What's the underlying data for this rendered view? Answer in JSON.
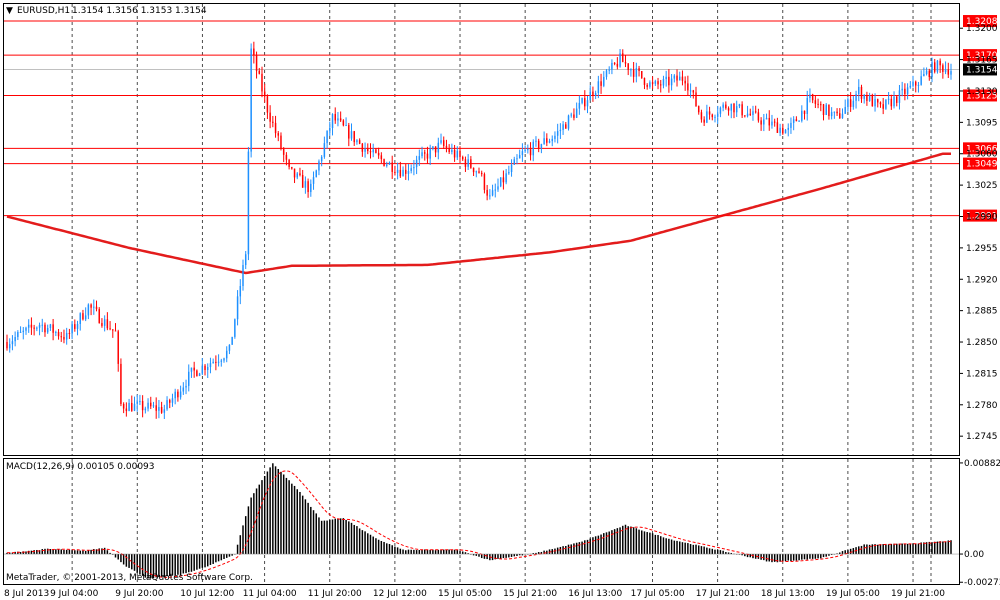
{
  "header": {
    "symbol": "EURUSD,H1",
    "ohlc": "1.3154 1.3156 1.3153 1.3154"
  },
  "copyright": "MetaTrader, © 2001-2013, MetaQuotes Software Corp.",
  "colors": {
    "background": "#ffffff",
    "bull_candle": "#1e90ff",
    "bear_candle": "#ff0000",
    "grid": "#000000",
    "level_line": "#ff0000",
    "moving_average": "#e31c1c",
    "macd_histogram": "#000000",
    "macd_signal": "#ff0000",
    "bid_line": "#c0c0c0"
  },
  "chart_data": [
    {
      "type": "candlestick",
      "symbol": "EURUSD",
      "timeframe": "H1",
      "ylim": [
        1.2724,
        1.3227
      ],
      "y_ticks": [
        "1.3200",
        "1.3165",
        "1.3130",
        "1.3095",
        "1.3060",
        "1.3025",
        "1.2990",
        "1.2955",
        "1.2920",
        "1.2885",
        "1.2850",
        "1.2815",
        "1.2780",
        "1.2745"
      ],
      "x_tick_labels": [
        "8 Jul 2013",
        "9 Jul 04:00",
        "9 Jul 20:00",
        "10 Jul 12:00",
        "11 Jul 04:00",
        "11 Jul 20:00",
        "12 Jul 12:00",
        "15 Jul 05:00",
        "15 Jul 21:00",
        "16 Jul 13:00",
        "17 Jul 05:00",
        "17 Jul 21:00",
        "18 Jul 13:00",
        "19 Jul 05:00",
        "19 Jul 21:00"
      ],
      "horizontal_levels": [
        1.3208,
        1.317,
        1.3125,
        1.3066,
        1.3049,
        1.2991
      ],
      "current_price": 1.3154,
      "close_path_keypoints": [
        {
          "t": 0,
          "close": 1.285
        },
        {
          "t": 12,
          "close": 1.287
        },
        {
          "t": 22,
          "close": 1.2855
        },
        {
          "t": 30,
          "close": 1.289
        },
        {
          "t": 40,
          "close": 1.286
        },
        {
          "t": 42,
          "close": 1.278
        },
        {
          "t": 58,
          "close": 1.2775
        },
        {
          "t": 68,
          "close": 1.2815
        },
        {
          "t": 82,
          "close": 1.284
        },
        {
          "t": 88,
          "close": 1.295
        },
        {
          "t": 90,
          "close": 1.3175
        },
        {
          "t": 96,
          "close": 1.311
        },
        {
          "t": 104,
          "close": 1.304
        },
        {
          "t": 112,
          "close": 1.302
        },
        {
          "t": 120,
          "close": 1.31
        },
        {
          "t": 134,
          "close": 1.306
        },
        {
          "t": 146,
          "close": 1.304
        },
        {
          "t": 160,
          "close": 1.307
        },
        {
          "t": 174,
          "close": 1.304
        },
        {
          "t": 178,
          "close": 1.301
        },
        {
          "t": 190,
          "close": 1.306
        },
        {
          "t": 202,
          "close": 1.308
        },
        {
          "t": 216,
          "close": 1.313
        },
        {
          "t": 226,
          "close": 1.3165
        },
        {
          "t": 238,
          "close": 1.3135
        },
        {
          "t": 250,
          "close": 1.3145
        },
        {
          "t": 256,
          "close": 1.31
        },
        {
          "t": 266,
          "close": 1.3115
        },
        {
          "t": 276,
          "close": 1.31
        },
        {
          "t": 288,
          "close": 1.3085
        },
        {
          "t": 296,
          "close": 1.312
        },
        {
          "t": 306,
          "close": 1.31
        },
        {
          "t": 314,
          "close": 1.313
        },
        {
          "t": 322,
          "close": 1.311
        },
        {
          "t": 334,
          "close": 1.3135
        },
        {
          "t": 342,
          "close": 1.3158
        },
        {
          "t": 348,
          "close": 1.3154
        }
      ],
      "moving_average_keypoints": [
        {
          "t": 0,
          "value": 1.299
        },
        {
          "t": 45,
          "value": 1.2955
        },
        {
          "t": 88,
          "value": 1.2927
        },
        {
          "t": 105,
          "value": 1.2935
        },
        {
          "t": 155,
          "value": 1.2936
        },
        {
          "t": 200,
          "value": 1.295
        },
        {
          "t": 230,
          "value": 1.2963
        },
        {
          "t": 265,
          "value": 1.2992
        },
        {
          "t": 300,
          "value": 1.3021
        },
        {
          "t": 345,
          "value": 1.306
        }
      ]
    },
    {
      "type": "bar",
      "title": "MACD(12,26,9) 0.00105 0.00093",
      "ylim": [
        -0.0029,
        0.0092
      ],
      "y_ticks": [
        "0.00882",
        "0.00",
        "-0.00273"
      ],
      "macd_keypoints": [
        {
          "t": 0,
          "value": 0.0001
        },
        {
          "t": 15,
          "value": 0.0005
        },
        {
          "t": 28,
          "value": 0.0003
        },
        {
          "t": 36,
          "value": 0.0006
        },
        {
          "t": 44,
          "value": -0.0012
        },
        {
          "t": 52,
          "value": -0.0024
        },
        {
          "t": 64,
          "value": -0.002
        },
        {
          "t": 74,
          "value": -0.0012
        },
        {
          "t": 84,
          "value": 0.0
        },
        {
          "t": 90,
          "value": 0.0055
        },
        {
          "t": 98,
          "value": 0.0088
        },
        {
          "t": 108,
          "value": 0.006
        },
        {
          "t": 116,
          "value": 0.0032
        },
        {
          "t": 124,
          "value": 0.0035
        },
        {
          "t": 136,
          "value": 0.0015
        },
        {
          "t": 146,
          "value": 0.0004
        },
        {
          "t": 166,
          "value": 0.0004
        },
        {
          "t": 178,
          "value": -0.0006
        },
        {
          "t": 195,
          "value": 0.0001
        },
        {
          "t": 212,
          "value": 0.0012
        },
        {
          "t": 228,
          "value": 0.0028
        },
        {
          "t": 245,
          "value": 0.0014
        },
        {
          "t": 262,
          "value": 0.0004
        },
        {
          "t": 282,
          "value": -0.0008
        },
        {
          "t": 300,
          "value": -0.0004
        },
        {
          "t": 316,
          "value": 0.0009
        },
        {
          "t": 333,
          "value": 0.001
        },
        {
          "t": 348,
          "value": 0.0013
        }
      ]
    }
  ]
}
